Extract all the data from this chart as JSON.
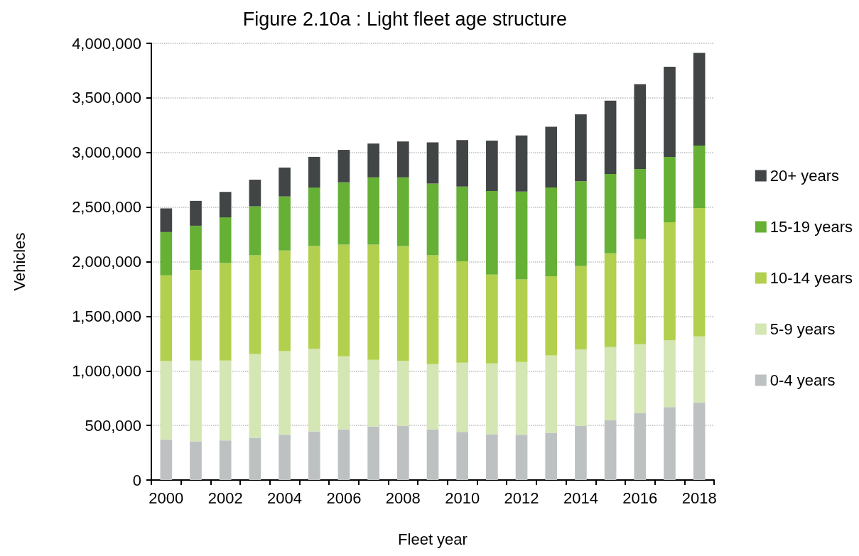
{
  "chart_data": {
    "type": "bar",
    "title": "Figure 2.10a : Light fleet age structure",
    "xlabel": "Fleet year",
    "ylabel": "Vehicles",
    "categories": [
      "2000",
      null,
      "2002",
      null,
      "2004",
      null,
      "2006",
      null,
      "2008",
      null,
      "2010",
      null,
      "2012",
      null,
      "2014",
      null,
      "2016",
      null,
      "2018"
    ],
    "stacked": true,
    "series": [
      {
        "name": "0-4 years",
        "color": "#bec1c2",
        "values": [
          369000,
          355000,
          363000,
          387000,
          414000,
          446000,
          464000,
          491000,
          496000,
          464000,
          440000,
          419000,
          414000,
          432000,
          496000,
          549000,
          613000,
          668000,
          711000
        ]
      },
      {
        "name": "5-9 years",
        "color": "#d4e6b3",
        "values": [
          721000,
          740000,
          732000,
          767000,
          766000,
          758000,
          669000,
          610000,
          597000,
          597000,
          634000,
          650000,
          668000,
          709000,
          700000,
          669000,
          631000,
          611000,
          605000
        ]
      },
      {
        "name": "10-14 years",
        "color": "#b2d04e",
        "values": [
          785000,
          831000,
          892000,
          904000,
          923000,
          939000,
          1023000,
          1055000,
          1050000,
          997000,
          929000,
          812000,
          756000,
          726000,
          764000,
          859000,
          963000,
          1082000,
          1175000
        ]
      },
      {
        "name": "15-19 years",
        "color": "#66b035",
        "values": [
          396000,
          403000,
          419000,
          449000,
          494000,
          536000,
          571000,
          616000,
          629000,
          658000,
          684000,
          766000,
          804000,
          812000,
          777000,
          727000,
          642000,
          599000,
          573000
        ]
      },
      {
        "name": "20+ years",
        "color": "#414546",
        "values": [
          217000,
          228000,
          233000,
          244000,
          265000,
          281000,
          297000,
          310000,
          329000,
          377000,
          427000,
          462000,
          514000,
          557000,
          613000,
          671000,
          777000,
          825000,
          848000
        ]
      }
    ],
    "ylim": [
      0,
      4000000
    ],
    "yticks": [
      0,
      {
        "value": 500000,
        "label": "500,000"
      },
      {
        "value": 1000000,
        "label": "1,000,000"
      },
      {
        "value": 1500000,
        "label": "1,500,000"
      },
      {
        "value": 2000000,
        "label": "2,000,000"
      },
      {
        "value": 2500000,
        "label": "2,500,000"
      },
      {
        "value": 3000000,
        "label": "3,000,000"
      },
      {
        "value": 3500000,
        "label": "3,500,000"
      },
      {
        "value": 4000000,
        "label": "4,000,000"
      }
    ],
    "grid": "y",
    "legend": "right"
  }
}
